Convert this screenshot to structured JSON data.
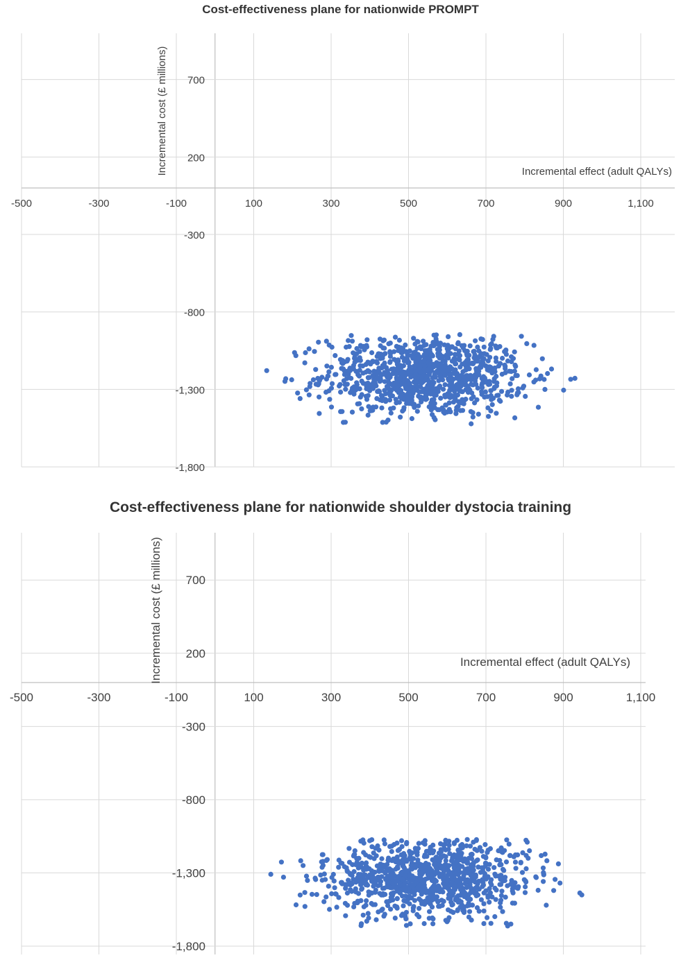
{
  "chart_data": [
    {
      "type": "scatter",
      "title": "Cost-effectiveness plane for nationwide PROMPT",
      "xlabel": "Incremental effect (adult QALYs)",
      "ylabel": "Incremental cost (£ millions)",
      "xlim": [
        -500,
        1200
      ],
      "ylim": [
        -1800,
        950
      ],
      "x_ticks": [
        -500,
        -300,
        -100,
        100,
        300,
        500,
        700,
        900,
        1100
      ],
      "x_tick_labels": [
        "-500",
        "-300",
        "-100",
        "100",
        "300",
        "500",
        "700",
        "900",
        "1,100"
      ],
      "y_ticks": [
        700,
        200,
        -300,
        -800,
        -1300,
        -1800
      ],
      "y_tick_labels": [
        "700",
        "200",
        "-300",
        "-800",
        "-1,300",
        "-1,800"
      ],
      "grid": true,
      "marker_color": "#4472C4",
      "series": [
        {
          "name": "",
          "points_summary": {
            "count": 1000,
            "x_mean": 540,
            "x_sd": 130,
            "x_min": 105,
            "x_max": 950,
            "y_mean": -1210,
            "y_sd": 130,
            "y_min": -1525,
            "y_max": -945
          }
        }
      ]
    },
    {
      "type": "scatter",
      "title": "Cost-effectiveness plane for nationwide shoulder dystocia training",
      "xlabel": "Incremental effect (adult QALYs)",
      "ylabel": "Incremental cost (£ millions)",
      "xlim": [
        -500,
        1200
      ],
      "ylim": [
        -1800,
        950
      ],
      "x_ticks": [
        -500,
        -300,
        -100,
        100,
        300,
        500,
        700,
        900,
        1100
      ],
      "x_tick_labels": [
        "-500",
        "-300",
        "-100",
        "100",
        "300",
        "500",
        "700",
        "900",
        "1,100"
      ],
      "y_ticks": [
        700,
        200,
        -300,
        -800,
        -1300,
        -1800
      ],
      "y_tick_labels": [
        "700",
        "200",
        "-300",
        "-800",
        "-1,300",
        "-1,800"
      ],
      "grid": true,
      "marker_color": "#4472C4",
      "series": [
        {
          "name": "",
          "points_summary": {
            "count": 1000,
            "x_mean": 545,
            "x_sd": 130,
            "x_min": 105,
            "x_max": 950,
            "y_mean": -1330,
            "y_sd": 140,
            "y_min": -1670,
            "y_max": -1065
          }
        }
      ]
    }
  ]
}
